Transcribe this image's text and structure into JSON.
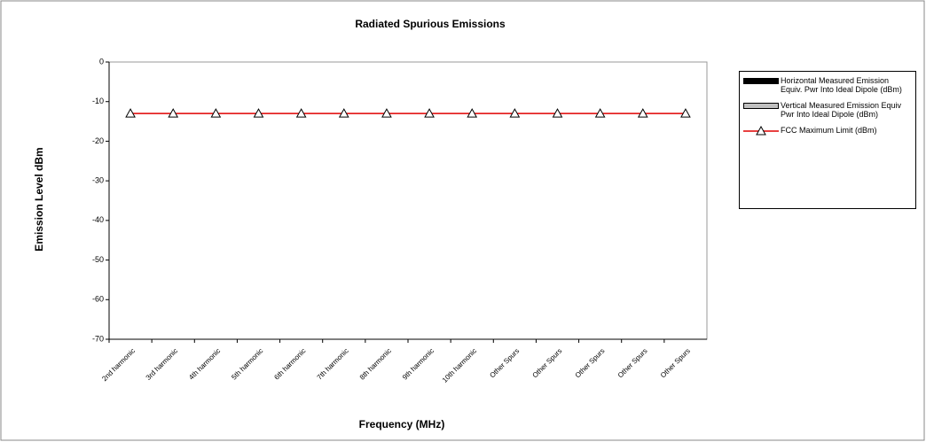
{
  "chart_data": {
    "type": "bar",
    "title": "Radiated Spurious Emissions",
    "y_label": "Emission Level dBm",
    "x_label": "Frequency (MHz)",
    "categories": [
      "2nd harmonic",
      "3rd harmonic",
      "4th harmonic",
      "5th harmonic",
      "6th harmonic",
      "7th harmonic",
      "8th harmonic",
      "9th harmonic",
      "10th harmonic",
      "Other Spurs",
      "Other Spurs",
      "Other Spurs",
      "Other Spurs",
      "Other Spurs"
    ],
    "series": [
      {
        "name": "Horizontal Measured Emission Equiv. Pwr Into Ideal Dipole (dBm)",
        "color": "#000000",
        "values": [
          null,
          null,
          null,
          null,
          null,
          null,
          null,
          null,
          null,
          null,
          null,
          null,
          null,
          null
        ]
      },
      {
        "name": "Vertical Measured Emission Equiv Pwr Into Ideal Dipole (dBm)",
        "color": "#c0c0c0",
        "values": [
          null,
          null,
          null,
          null,
          null,
          null,
          null,
          null,
          null,
          null,
          null,
          null,
          null,
          null
        ]
      },
      {
        "name": "FCC Maximum Limit (dBm)",
        "type": "line",
        "color": "#e00000",
        "values": [
          -13,
          -13,
          -13,
          -13,
          -13,
          -13,
          -13,
          -13,
          -13,
          -13,
          -13,
          -13,
          -13,
          -13
        ]
      }
    ],
    "ylim": [
      -70,
      0
    ],
    "yticks": [
      0,
      -10,
      -20,
      -30,
      -40,
      -50,
      -60,
      -70
    ],
    "grid": false,
    "legend": "right"
  }
}
